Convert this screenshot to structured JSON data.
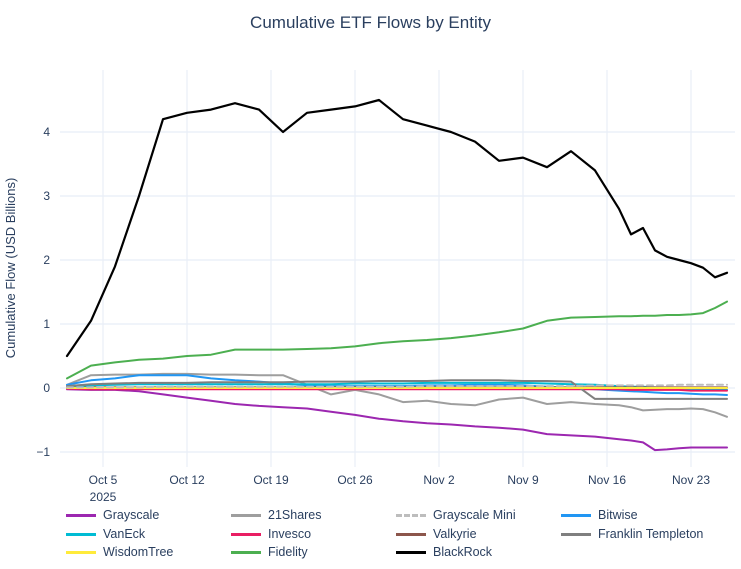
{
  "chart": {
    "title": "Cumulative ETF Flows by Entity"
  },
  "chart_data": {
    "type": "line",
    "title": "Cumulative ETF Flows by Entity",
    "xlabel": "",
    "ylabel": "Cumulative Flow (USD Billions)",
    "ylim": [
      -1.25,
      5.0
    ],
    "grid": true,
    "legend_position": "bottom",
    "x_dates": [
      "2025-10-02",
      "2025-10-04",
      "2025-10-06",
      "2025-10-08",
      "2025-10-10",
      "2025-10-12",
      "2025-10-14",
      "2025-10-16",
      "2025-10-18",
      "2025-10-20",
      "2025-10-22",
      "2025-10-24",
      "2025-10-26",
      "2025-10-28",
      "2025-10-30",
      "2025-11-01",
      "2025-11-03",
      "2025-11-05",
      "2025-11-07",
      "2025-11-09",
      "2025-11-11",
      "2025-11-13",
      "2025-11-15",
      "2025-11-17",
      "2025-11-18",
      "2025-11-19",
      "2025-11-20",
      "2025-11-21",
      "2025-11-22",
      "2025-11-23",
      "2025-11-24",
      "2025-11-25",
      "2025-11-26"
    ],
    "x_days": [
      0,
      2,
      4,
      6,
      8,
      10,
      12,
      14,
      16,
      18,
      20,
      22,
      24,
      26,
      28,
      30,
      32,
      34,
      36,
      38,
      40,
      42,
      44,
      46,
      47,
      48,
      49,
      50,
      51,
      52,
      53,
      54,
      55
    ],
    "x_tick_days": [
      3,
      10,
      17,
      24,
      31,
      38,
      45,
      52
    ],
    "x_tick_labels": [
      "Oct 5",
      "Oct 12",
      "Oct 19",
      "Oct 26",
      "Nov 2",
      "Nov 9",
      "Nov 16",
      "Nov 23"
    ],
    "x_tick_sublabel": "2025",
    "y_ticks": [
      -1,
      0,
      1,
      2,
      3,
      4
    ],
    "y_tick_labels": [
      "−1",
      "0",
      "1",
      "2",
      "3",
      "4"
    ],
    "draw_order": [
      0,
      1,
      3,
      4,
      5,
      6,
      7,
      8,
      2,
      9,
      10
    ],
    "series": [
      {
        "name": "Grayscale",
        "color": "#9c27b0",
        "dash": false,
        "values": [
          -0.02,
          -0.03,
          -0.03,
          -0.05,
          -0.1,
          -0.15,
          -0.2,
          -0.25,
          -0.28,
          -0.3,
          -0.32,
          -0.37,
          -0.42,
          -0.48,
          -0.52,
          -0.55,
          -0.57,
          -0.6,
          -0.62,
          -0.65,
          -0.72,
          -0.74,
          -0.76,
          -0.8,
          -0.82,
          -0.85,
          -0.97,
          -0.96,
          -0.94,
          -0.93,
          -0.93,
          -0.93,
          -0.93
        ]
      },
      {
        "name": "21Shares",
        "color": "#9e9e9e",
        "dash": false,
        "values": [
          0.05,
          0.2,
          0.21,
          0.21,
          0.22,
          0.22,
          0.21,
          0.21,
          0.2,
          0.2,
          0.05,
          -0.1,
          -0.03,
          -0.1,
          -0.22,
          -0.2,
          -0.25,
          -0.27,
          -0.18,
          -0.15,
          -0.25,
          -0.22,
          -0.25,
          -0.27,
          -0.3,
          -0.35,
          -0.34,
          -0.33,
          -0.33,
          -0.32,
          -0.33,
          -0.38,
          -0.45
        ]
      },
      {
        "name": "Grayscale Mini",
        "color": "#bdbdbd",
        "dash": true,
        "values": [
          0.01,
          0.01,
          0.01,
          0.01,
          0.02,
          0.02,
          0.02,
          0.02,
          0.02,
          0.02,
          0.02,
          0.02,
          0.02,
          0.02,
          0.02,
          0.03,
          0.03,
          0.03,
          0.03,
          0.03,
          0.03,
          0.03,
          0.04,
          0.04,
          0.04,
          0.04,
          0.04,
          0.04,
          0.05,
          0.05,
          0.05,
          0.05,
          0.05
        ]
      },
      {
        "name": "Bitwise",
        "color": "#2196f3",
        "dash": false,
        "values": [
          0.05,
          0.12,
          0.15,
          0.2,
          0.2,
          0.2,
          0.15,
          0.12,
          0.1,
          0.07,
          0.04,
          0.03,
          0.03,
          0.03,
          0.03,
          0.04,
          0.04,
          0.05,
          0.05,
          0.04,
          0.02,
          0.0,
          -0.02,
          -0.04,
          -0.05,
          -0.06,
          -0.07,
          -0.08,
          -0.08,
          -0.09,
          -0.1,
          -0.1,
          -0.11
        ]
      },
      {
        "name": "VanEck",
        "color": "#00bcd4",
        "dash": false,
        "values": [
          0.02,
          0.04,
          0.05,
          0.06,
          0.06,
          0.06,
          0.06,
          0.06,
          0.06,
          0.06,
          0.06,
          0.06,
          0.07,
          0.07,
          0.07,
          0.08,
          0.08,
          0.08,
          0.08,
          0.08,
          0.07,
          0.06,
          0.05,
          0.03,
          0.02,
          0.02,
          0.01,
          0.0,
          -0.01,
          -0.02,
          -0.02,
          -0.03,
          -0.03
        ]
      },
      {
        "name": "Invesco",
        "color": "#e91e63",
        "dash": false,
        "values": [
          -0.01,
          -0.02,
          -0.02,
          -0.02,
          -0.02,
          -0.02,
          -0.02,
          -0.02,
          -0.02,
          -0.02,
          -0.02,
          -0.02,
          -0.02,
          -0.02,
          -0.02,
          -0.02,
          -0.02,
          -0.02,
          -0.02,
          -0.02,
          -0.02,
          -0.02,
          -0.02,
          -0.02,
          -0.03,
          -0.03,
          -0.03,
          -0.03,
          -0.03,
          -0.04,
          -0.04,
          -0.04,
          -0.04
        ]
      },
      {
        "name": "Valkyrie",
        "color": "#8c564b",
        "dash": false,
        "values": [
          0.0,
          0.01,
          0.01,
          0.01,
          0.01,
          0.01,
          0.01,
          0.01,
          0.01,
          0.01,
          0.01,
          0.01,
          0.01,
          0.01,
          0.01,
          0.01,
          0.01,
          0.01,
          0.01,
          0.01,
          0.01,
          0.01,
          0.01,
          0.01,
          0.01,
          0.01,
          0.01,
          0.01,
          0.01,
          0.01,
          0.01,
          0.01,
          0.01
        ]
      },
      {
        "name": "Franklin Templeton",
        "color": "#7f7f7f",
        "dash": false,
        "values": [
          0.03,
          0.06,
          0.07,
          0.08,
          0.08,
          0.08,
          0.09,
          0.09,
          0.09,
          0.09,
          0.1,
          0.1,
          0.1,
          0.11,
          0.11,
          0.11,
          0.12,
          0.12,
          0.12,
          0.11,
          0.11,
          0.1,
          -0.17,
          -0.17,
          -0.17,
          -0.17,
          -0.17,
          -0.17,
          -0.17,
          -0.17,
          -0.17,
          -0.17,
          -0.17
        ]
      },
      {
        "name": "WisdomTree",
        "color": "#ffeb3b",
        "dash": false,
        "values": [
          0.0,
          0.0,
          0.0,
          0.0,
          0.0,
          0.0,
          0.0,
          0.0,
          0.0,
          0.0,
          0.0,
          0.0,
          0.0,
          0.0,
          0.0,
          0.0,
          0.0,
          0.0,
          0.0,
          0.0,
          0.0,
          0.0,
          0.0,
          0.0,
          0.0,
          0.0,
          0.0,
          0.0,
          0.0,
          0.0,
          0.0,
          0.0,
          0.0
        ]
      },
      {
        "name": "Fidelity",
        "color": "#4caf50",
        "dash": false,
        "values": [
          0.15,
          0.35,
          0.4,
          0.44,
          0.46,
          0.5,
          0.52,
          0.6,
          0.6,
          0.6,
          0.61,
          0.62,
          0.65,
          0.7,
          0.73,
          0.75,
          0.78,
          0.82,
          0.87,
          0.93,
          1.05,
          1.1,
          1.11,
          1.12,
          1.12,
          1.13,
          1.13,
          1.14,
          1.14,
          1.15,
          1.17,
          1.25,
          1.35
        ]
      },
      {
        "name": "BlackRock",
        "color": "#000000",
        "dash": false,
        "values": [
          0.5,
          1.05,
          1.9,
          3.0,
          4.2,
          4.3,
          4.35,
          4.45,
          4.35,
          4.0,
          4.3,
          4.35,
          4.4,
          4.5,
          4.2,
          4.1,
          4.0,
          3.85,
          3.55,
          3.6,
          3.45,
          3.7,
          3.4,
          2.8,
          2.4,
          2.5,
          2.15,
          2.05,
          2.0,
          1.95,
          1.88,
          1.73,
          1.8
        ]
      }
    ],
    "colors": {
      "title_text": "#2a3f5f",
      "tick_text": "#2a3f5f",
      "gridline": "#e8eef7",
      "background": "#ffffff"
    }
  }
}
